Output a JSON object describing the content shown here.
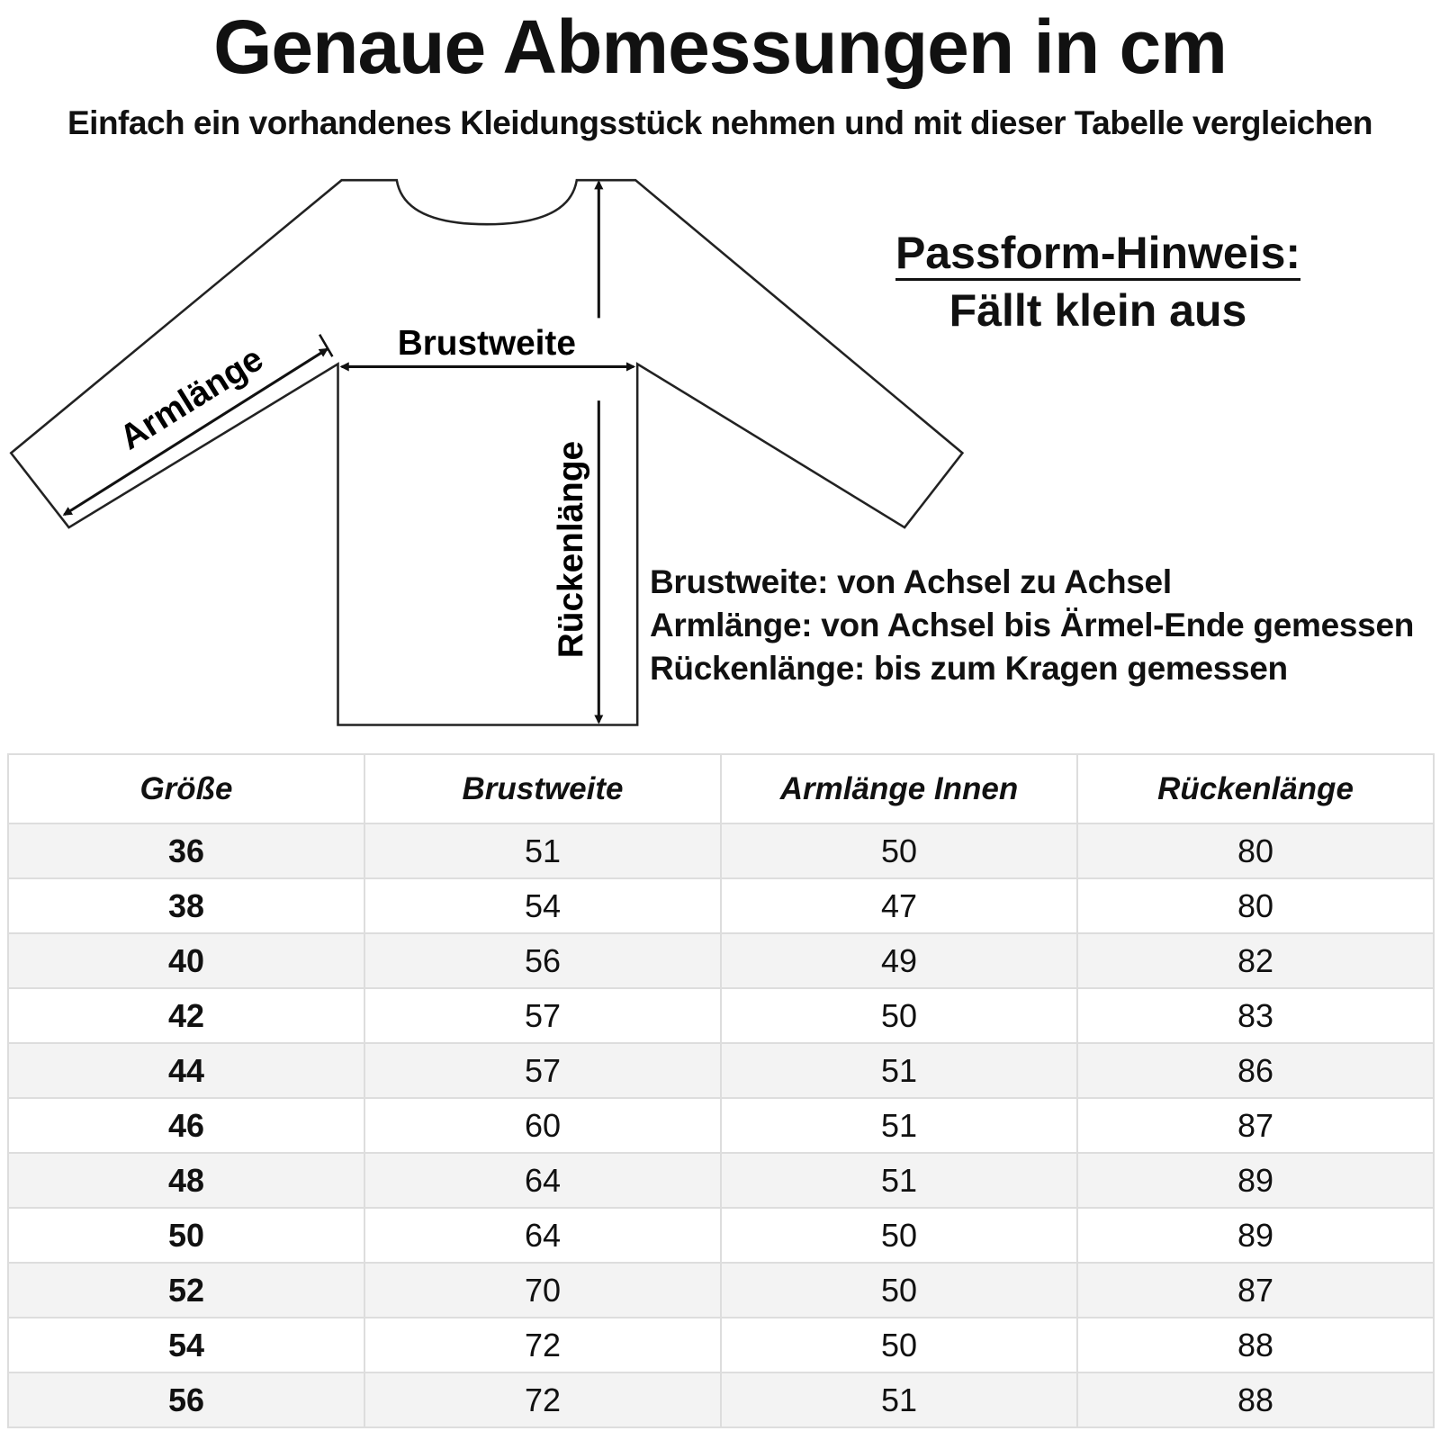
{
  "title": "Genaue Abmessungen in cm",
  "subtitle": "Einfach ein vorhandenes Kleidungsstück nehmen und mit dieser Tabelle vergleichen",
  "diagram": {
    "label_chest": "Brustweite",
    "label_arm": "Armlänge",
    "label_back": "Rückenlänge"
  },
  "fit_hint": {
    "title": "Passform-Hinweis:",
    "text": "Fällt klein aus"
  },
  "descriptions": [
    "Brustweite: von Achsel zu Achsel",
    "Armlänge: von Achsel bis Ärmel-Ende gemessen",
    "Rückenlänge: bis zum Kragen gemessen"
  ],
  "table": {
    "headers": [
      "Größe",
      "Brustweite",
      "Armlänge Innen",
      "Rückenlänge"
    ],
    "rows": [
      [
        "36",
        "51",
        "50",
        "80"
      ],
      [
        "38",
        "54",
        "47",
        "80"
      ],
      [
        "40",
        "56",
        "49",
        "82"
      ],
      [
        "42",
        "57",
        "50",
        "83"
      ],
      [
        "44",
        "57",
        "51",
        "86"
      ],
      [
        "46",
        "60",
        "51",
        "87"
      ],
      [
        "48",
        "64",
        "51",
        "89"
      ],
      [
        "50",
        "64",
        "50",
        "89"
      ],
      [
        "52",
        "70",
        "50",
        "87"
      ],
      [
        "54",
        "72",
        "50",
        "88"
      ],
      [
        "56",
        "72",
        "51",
        "88"
      ]
    ]
  }
}
